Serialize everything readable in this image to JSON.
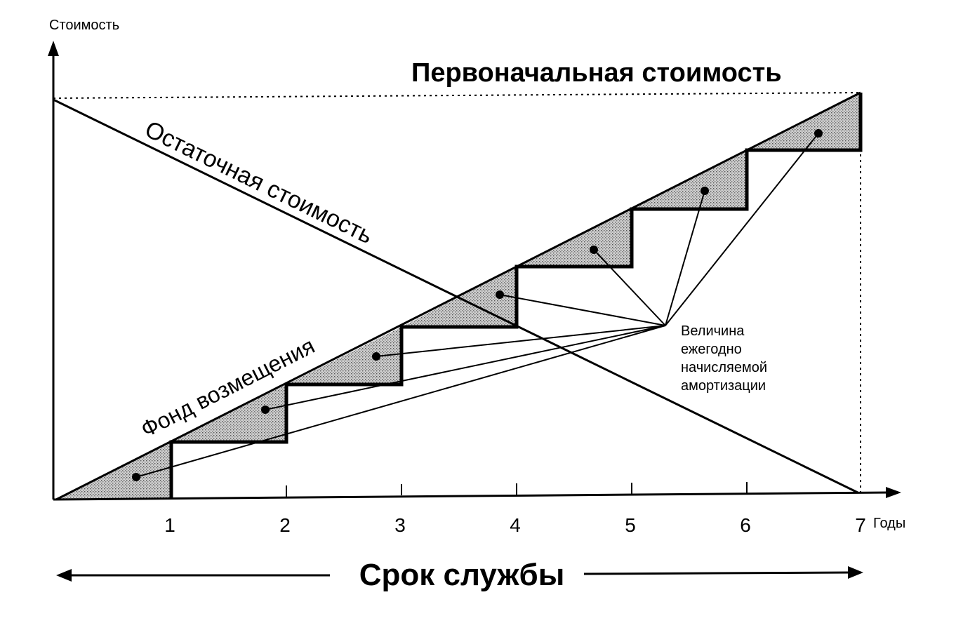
{
  "axes": {
    "y_label": "Стоимость",
    "x_label": "Годы",
    "ticks": [
      "1",
      "2",
      "3",
      "4",
      "5",
      "6",
      "7"
    ]
  },
  "labels": {
    "initial_cost": "Первоначальная стоимость",
    "residual_value": "Остаточная стоимость",
    "replacement_fund": "Фонд возмещения",
    "annual_depreciation": [
      "Величина",
      "ежегодно",
      "начисляемой",
      "амортизации"
    ],
    "service_life": "Срок службы"
  },
  "colors": {
    "line": "#000000",
    "shade": "#8c8c8c",
    "background": "#ffffff"
  }
}
